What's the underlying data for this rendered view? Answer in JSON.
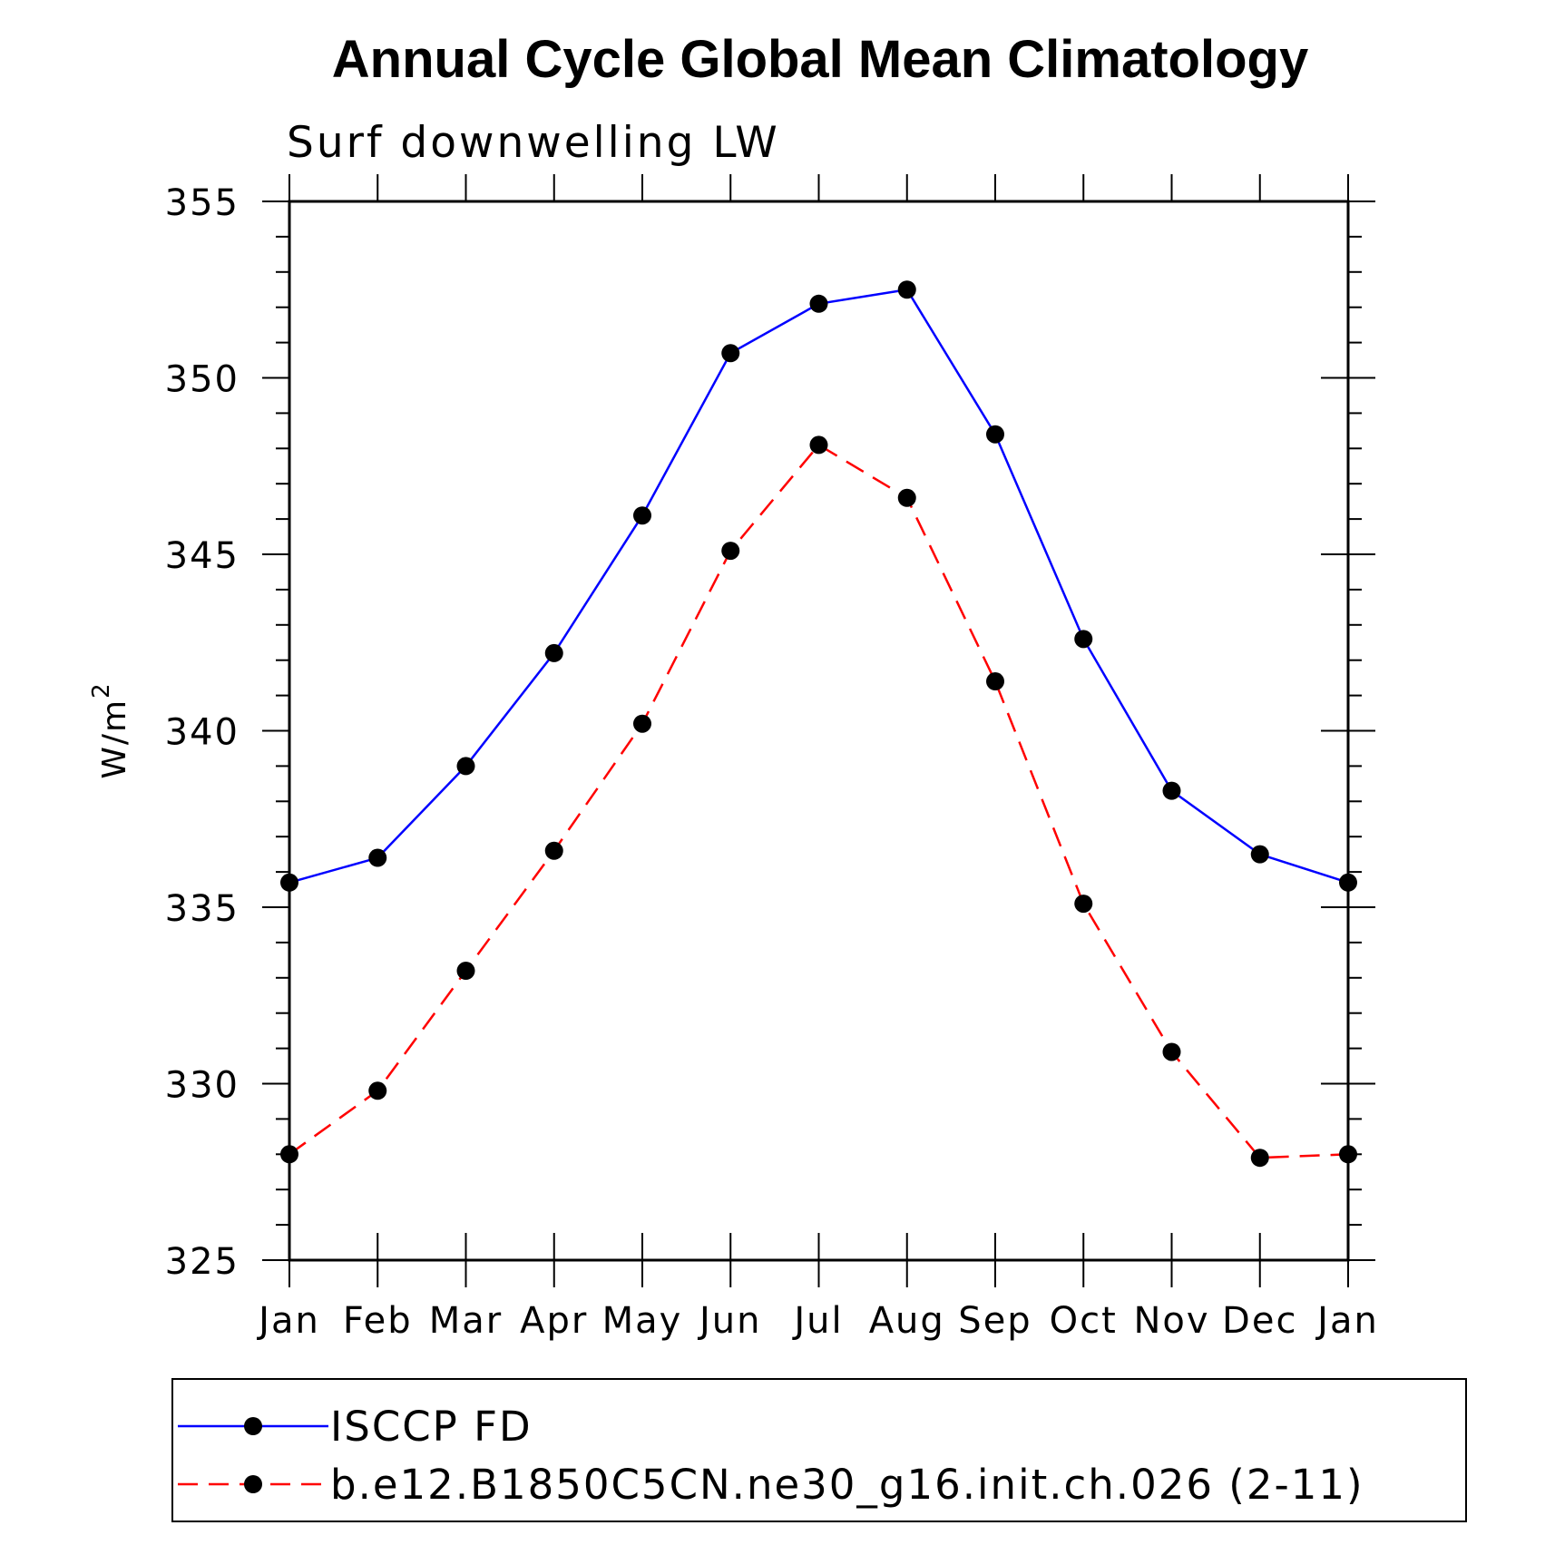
{
  "chart_data": {
    "type": "line",
    "title": "Annual Cycle Global Mean Climatology",
    "subtitle": "Surf downwelling LW",
    "ylabel": "W/m",
    "ylabel_superscript": "2",
    "xlabel": "",
    "ylim": [
      325,
      355
    ],
    "ymajor_ticks": [
      325,
      330,
      335,
      340,
      345,
      350,
      355
    ],
    "yminor_step": 1,
    "categories": [
      "Jan",
      "Feb",
      "Mar",
      "Apr",
      "May",
      "Jun",
      "Jul",
      "Aug",
      "Sep",
      "Oct",
      "Nov",
      "Dec",
      "Jan"
    ],
    "series": [
      {
        "name": "ISCCP FD",
        "color": "#0000ff",
        "dash": "solid",
        "values": [
          335.7,
          336.4,
          339.0,
          342.2,
          346.1,
          350.7,
          352.1,
          352.5,
          348.4,
          342.6,
          338.3,
          336.5,
          335.7
        ]
      },
      {
        "name": "b.e12.B1850C5CN.ne30_g16.init.ch.026 (2-11)",
        "color": "#ff0000",
        "dash": "dashed",
        "values": [
          328.0,
          329.8,
          333.2,
          336.6,
          340.2,
          345.1,
          348.1,
          346.6,
          341.4,
          335.1,
          330.9,
          327.9,
          328.0
        ]
      }
    ],
    "marker_color": "#000000",
    "legend_position": "bottom"
  }
}
